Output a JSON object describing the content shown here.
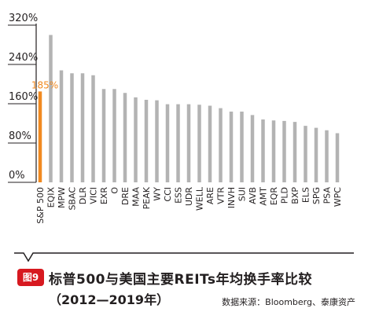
{
  "chart_data": {
    "type": "bar",
    "categories": [
      "S&P 500",
      "EQIX",
      "MPW",
      "SBAC",
      "DLR",
      "VICI",
      "EXR",
      "O",
      "DRE",
      "MAA",
      "PEAK",
      "WY",
      "CCI",
      "ESS",
      "UDR",
      "WELL",
      "ARE",
      "VTR",
      "INVH",
      "SUI",
      "AVB",
      "AMT",
      "EQR",
      "PLD",
      "BXP",
      "ELS",
      "SPG",
      "PSA",
      "WPC"
    ],
    "values": [
      185,
      300,
      228,
      222,
      222,
      218,
      190,
      190,
      182,
      173,
      168,
      167,
      159,
      159,
      159,
      158,
      156,
      151,
      144,
      144,
      137,
      128,
      126,
      125,
      123,
      115,
      111,
      106,
      100
    ],
    "highlight_index": 0,
    "highlight_label": "185%",
    "yticks": [
      "0%",
      "80%",
      "160%",
      "240%",
      "320%"
    ],
    "ylim": [
      0,
      320
    ],
    "colors": {
      "highlight": "#f18a21",
      "bar": "#b3b3b3",
      "axis": "#231f20"
    }
  },
  "caption": {
    "badge": "图9",
    "title": "标普500与美国主要REITs年均换手率比较",
    "subtitle": "（2012—2019年）",
    "source": "数据来源：Bloomberg、泰康资产"
  }
}
